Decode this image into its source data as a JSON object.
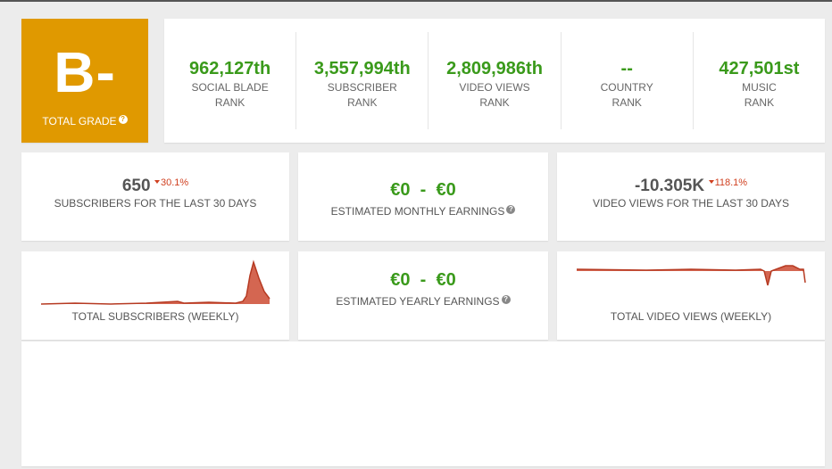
{
  "grade": {
    "letter": "B-",
    "label": "TOTAL GRADE"
  },
  "ranks": [
    {
      "value": "962,127th",
      "line1": "SOCIAL BLADE",
      "line2": "RANK"
    },
    {
      "value": "3,557,994th",
      "line1": "SUBSCRIBER",
      "line2": "RANK"
    },
    {
      "value": "2,809,986th",
      "line1": "VIDEO VIEWS",
      "line2": "RANK"
    },
    {
      "value": "--",
      "line1": "COUNTRY",
      "line2": "RANK"
    },
    {
      "value": "427,501st",
      "line1": "MUSIC",
      "line2": "RANK"
    }
  ],
  "subscribers_30d": {
    "value": "650",
    "change": "30.1%",
    "label": "SUBSCRIBERS FOR THE LAST 30 DAYS"
  },
  "monthly_earnings": {
    "low": "€0",
    "sep": "-",
    "high": "€0",
    "label": "ESTIMATED MONTHLY EARNINGS"
  },
  "views_30d": {
    "value": "-10.305K",
    "change": "118.1%",
    "label": "VIDEO VIEWS FOR THE LAST 30 DAYS"
  },
  "yearly_earnings": {
    "low": "€0",
    "sep": "-",
    "high": "€0",
    "label": "ESTIMATED YEARLY EARNINGS"
  },
  "subs_chart_label": "TOTAL SUBSCRIBERS (WEEKLY)",
  "views_chart_label": "TOTAL VIDEO VIEWS (WEEKLY)",
  "colors": {
    "grade_bg": "#e09900",
    "rank_green": "#3a9a1b",
    "decline_red": "#d04020",
    "spark": "#cc4b32"
  }
}
